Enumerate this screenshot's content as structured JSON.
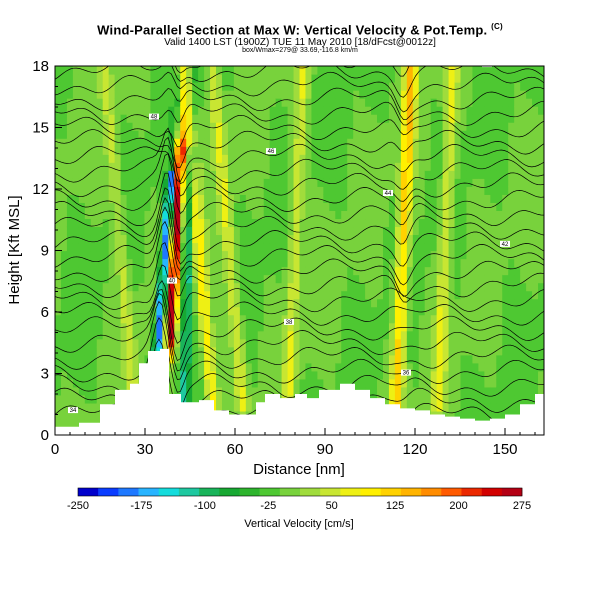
{
  "header": {
    "title": "Wind-Parallel Section at Max W: Vertical Velocity & Pot.Temp.",
    "title_mark": "(C)",
    "subtitle": "Valid 1400 LST (1900Z) TUE 11 May 2010 [18/dFcst@0012z]",
    "subsubtitle": "box/Wmax=279@ 33.69,-116.8 km/m"
  },
  "chart_data": {
    "type": "heatmap",
    "title": "Wind-Parallel Section at Max W: Vertical Velocity & Pot.Temp.",
    "xlabel": "Distance [nm]",
    "ylabel": "Height [Kft MSL]",
    "xlim": [
      0,
      163
    ],
    "ylim": [
      0,
      18
    ],
    "xticks": [
      0,
      30,
      60,
      90,
      120,
      150
    ],
    "yticks": [
      0,
      3,
      6,
      9,
      12,
      15,
      18
    ],
    "colorbar": {
      "label": "Vertical Velocity [cm/s]",
      "tick_labels": [
        "-250",
        "-175",
        "-100",
        "-25",
        "50",
        "125",
        "200",
        "275"
      ],
      "colors": [
        "#0000cc",
        "#0a3cff",
        "#1e78ff",
        "#28b4ff",
        "#14dcdc",
        "#1ec8a0",
        "#19b45a",
        "#17a832",
        "#2db42d",
        "#4ec832",
        "#78d23c",
        "#a0dc3c",
        "#c8e632",
        "#eef014",
        "#fff000",
        "#ffd200",
        "#ffb400",
        "#ff8c00",
        "#ff5a00",
        "#eb2800",
        "#d20000",
        "#b40014"
      ]
    },
    "max_w": 279,
    "updraft_columns_nm": [
      37,
      40,
      48,
      58,
      80,
      116,
      130
    ],
    "downdraft_columns_nm": [
      34,
      45
    ],
    "terrain_kft": [
      [
        0,
        0.4
      ],
      [
        8,
        0.6
      ],
      [
        15,
        1.5
      ],
      [
        20,
        2.2
      ],
      [
        25,
        2.5
      ],
      [
        28,
        3.5
      ],
      [
        31,
        4.1
      ],
      [
        35,
        4.2
      ],
      [
        38,
        2.0
      ],
      [
        42,
        1.6
      ],
      [
        48,
        1.7
      ],
      [
        53,
        1.2
      ],
      [
        58,
        1.0
      ],
      [
        63,
        1.0
      ],
      [
        67,
        1.6
      ],
      [
        70,
        2.0
      ],
      [
        75,
        1.8
      ],
      [
        80,
        2.0
      ],
      [
        84,
        1.8
      ],
      [
        88,
        2.2
      ],
      [
        95,
        2.5
      ],
      [
        100,
        2.2
      ],
      [
        105,
        1.8
      ],
      [
        110,
        1.5
      ],
      [
        115,
        1.3
      ],
      [
        120,
        1.2
      ],
      [
        125,
        1.0
      ],
      [
        130,
        0.9
      ],
      [
        135,
        0.8
      ],
      [
        140,
        0.7
      ],
      [
        145,
        0.8
      ],
      [
        150,
        1.0
      ],
      [
        155,
        1.5
      ],
      [
        160,
        2.0
      ],
      [
        163,
        2.3
      ]
    ],
    "isentrope_labels": [
      "34",
      "36",
      "38",
      "40",
      "42",
      "44",
      "46",
      "48",
      "50",
      "52"
    ]
  }
}
